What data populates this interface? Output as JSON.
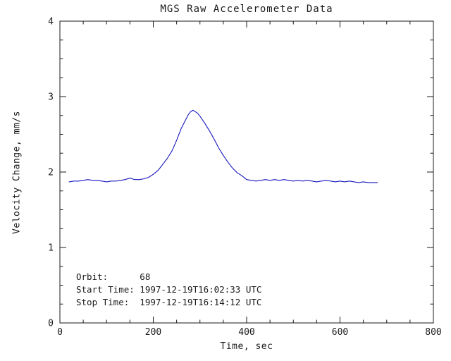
{
  "chart_data": {
    "type": "line",
    "title": "MGS Raw Accelerometer Data",
    "xlabel": "Time, sec",
    "ylabel": "Velocity Change, mm/s",
    "xlim": [
      0,
      800
    ],
    "ylim": [
      0,
      4
    ],
    "xticks": [
      0,
      200,
      400,
      600,
      800
    ],
    "yticks": [
      0,
      1,
      2,
      3,
      4
    ],
    "x_minor_interval": 50,
    "y_minor_interval": 0.25,
    "grid": false,
    "legend": "none",
    "line_color": "#1616c0",
    "axis_color": "#1a1a1a",
    "background_color": "#ffffff",
    "series": [
      {
        "name": "velocity-change",
        "points": [
          [
            20,
            1.87
          ],
          [
            30,
            1.88
          ],
          [
            40,
            1.88
          ],
          [
            50,
            1.89
          ],
          [
            60,
            1.9
          ],
          [
            70,
            1.89
          ],
          [
            80,
            1.89
          ],
          [
            90,
            1.88
          ],
          [
            100,
            1.87
          ],
          [
            110,
            1.88
          ],
          [
            120,
            1.88
          ],
          [
            130,
            1.89
          ],
          [
            140,
            1.9
          ],
          [
            150,
            1.92
          ],
          [
            155,
            1.91
          ],
          [
            160,
            1.9
          ],
          [
            170,
            1.9
          ],
          [
            180,
            1.91
          ],
          [
            190,
            1.93
          ],
          [
            200,
            1.97
          ],
          [
            210,
            2.02
          ],
          [
            220,
            2.1
          ],
          [
            230,
            2.18
          ],
          [
            240,
            2.28
          ],
          [
            250,
            2.42
          ],
          [
            260,
            2.58
          ],
          [
            270,
            2.7
          ],
          [
            275,
            2.76
          ],
          [
            280,
            2.8
          ],
          [
            285,
            2.82
          ],
          [
            290,
            2.8
          ],
          [
            295,
            2.78
          ],
          [
            300,
            2.74
          ],
          [
            310,
            2.65
          ],
          [
            320,
            2.55
          ],
          [
            330,
            2.44
          ],
          [
            340,
            2.32
          ],
          [
            350,
            2.22
          ],
          [
            360,
            2.13
          ],
          [
            370,
            2.05
          ],
          [
            380,
            1.99
          ],
          [
            390,
            1.95
          ],
          [
            400,
            1.9
          ],
          [
            410,
            1.89
          ],
          [
            420,
            1.88
          ],
          [
            430,
            1.89
          ],
          [
            440,
            1.9
          ],
          [
            450,
            1.89
          ],
          [
            460,
            1.9
          ],
          [
            470,
            1.89
          ],
          [
            480,
            1.9
          ],
          [
            490,
            1.89
          ],
          [
            500,
            1.88
          ],
          [
            510,
            1.89
          ],
          [
            520,
            1.88
          ],
          [
            530,
            1.89
          ],
          [
            540,
            1.88
          ],
          [
            550,
            1.87
          ],
          [
            560,
            1.88
          ],
          [
            570,
            1.89
          ],
          [
            580,
            1.88
          ],
          [
            590,
            1.87
          ],
          [
            600,
            1.88
          ],
          [
            610,
            1.87
          ],
          [
            620,
            1.88
          ],
          [
            630,
            1.87
          ],
          [
            640,
            1.86
          ],
          [
            650,
            1.87
          ],
          [
            660,
            1.86
          ],
          [
            670,
            1.86
          ],
          [
            680,
            1.86
          ]
        ]
      }
    ],
    "annotations": [
      {
        "label": "Orbit:      68"
      },
      {
        "label": "Start Time: 1997-12-19T16:02:33 UTC"
      },
      {
        "label": "Stop Time:  1997-12-19T16:14:12 UTC"
      }
    ]
  }
}
